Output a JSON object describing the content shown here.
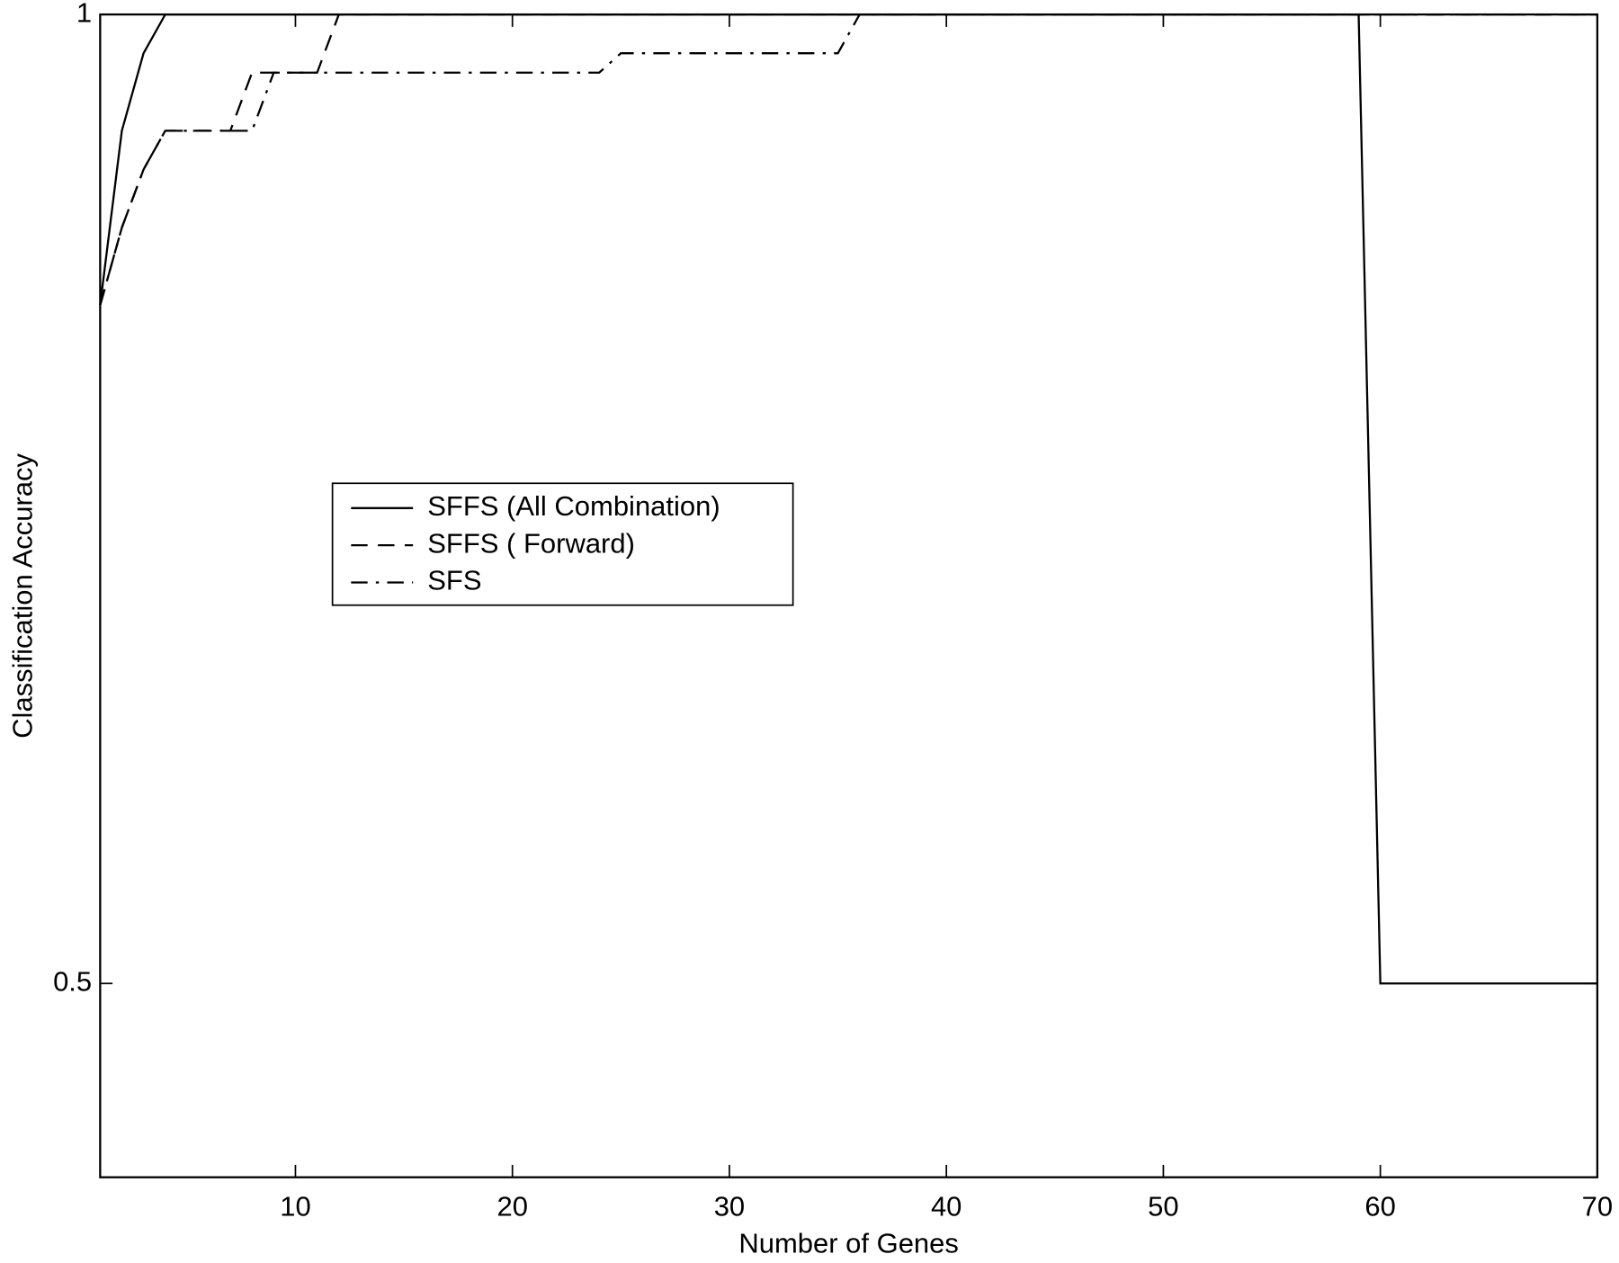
{
  "chart_data": {
    "type": "line",
    "xlabel": "Number of Genes",
    "ylabel": "Classification Accuracy",
    "xlim": [
      1,
      70
    ],
    "ylim": [
      0.4,
      1
    ],
    "xticks": [
      10,
      20,
      30,
      40,
      50,
      60,
      70
    ],
    "yticks": [
      0.5,
      1
    ],
    "legend": "center-left",
    "series": [
      {
        "name": "SFFS (All Combination)",
        "color": "#000000",
        "dash": "solid",
        "x": [
          1,
          2,
          3,
          4,
          59,
          60,
          70
        ],
        "values": [
          0.85,
          0.94,
          0.98,
          1,
          1,
          0.5,
          0.5
        ]
      },
      {
        "name": "SFFS ( Forward)",
        "color": "#000000",
        "dash": "dashed",
        "x": [
          1,
          2,
          3,
          4,
          7,
          8,
          11,
          12,
          70
        ],
        "values": [
          0.85,
          0.89,
          0.92,
          0.94,
          0.94,
          0.97,
          0.97,
          1,
          1
        ]
      },
      {
        "name": "SFS",
        "color": "#000000",
        "dash": "dashdot",
        "x": [
          1,
          2,
          3,
          4,
          8,
          9,
          24,
          25,
          35,
          36,
          70
        ],
        "values": [
          0.85,
          0.89,
          0.92,
          0.94,
          0.94,
          0.97,
          0.97,
          0.98,
          0.98,
          1,
          1
        ]
      }
    ]
  }
}
